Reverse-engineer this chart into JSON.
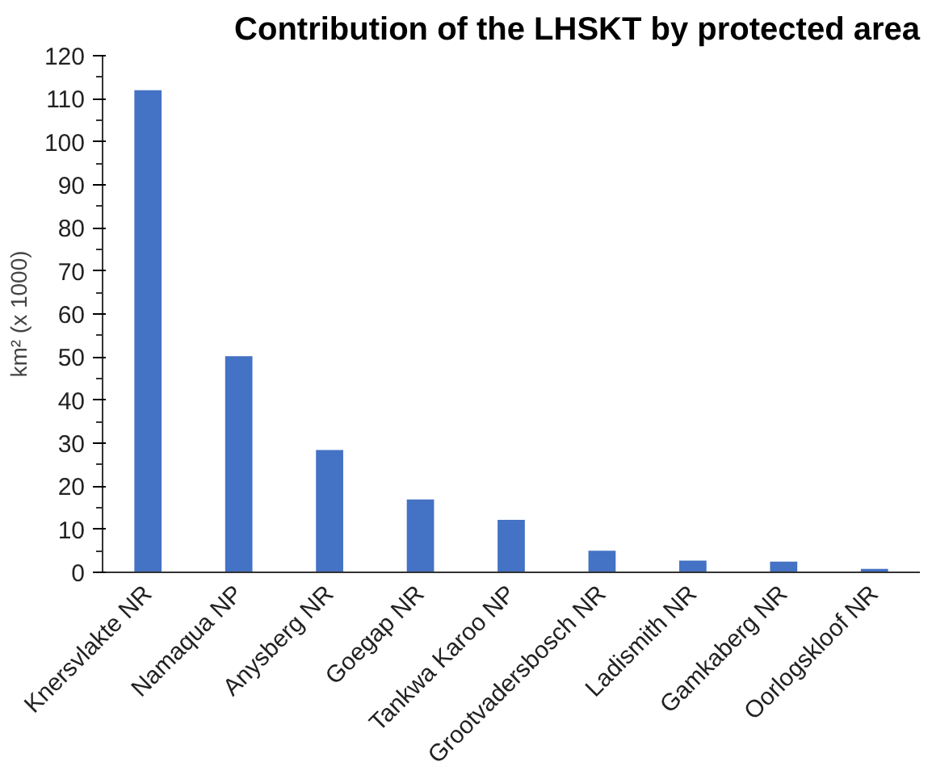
{
  "chart_data": {
    "type": "bar",
    "title": "Contribution of the LHSKT by protected area",
    "ylabel": "km² (x 1000)",
    "categories": [
      "Knersvlakte NR",
      "Namaqua NP",
      "Anysberg NR",
      "Goegap NR",
      "Tankwa Karoo NP",
      "Grootvadersbosch NR",
      "Ladismith NR",
      "Gamkaberg NR",
      "Oorlogskloof NR"
    ],
    "values": [
      112,
      50.2,
      28.4,
      16.9,
      12.2,
      5,
      2.7,
      2.5,
      0.8
    ],
    "color": "#4472c4",
    "ylim": [
      0,
      120
    ],
    "yticks": [
      0,
      10,
      20,
      30,
      40,
      50,
      60,
      70,
      80,
      90,
      100,
      110,
      120
    ],
    "grid": false
  }
}
